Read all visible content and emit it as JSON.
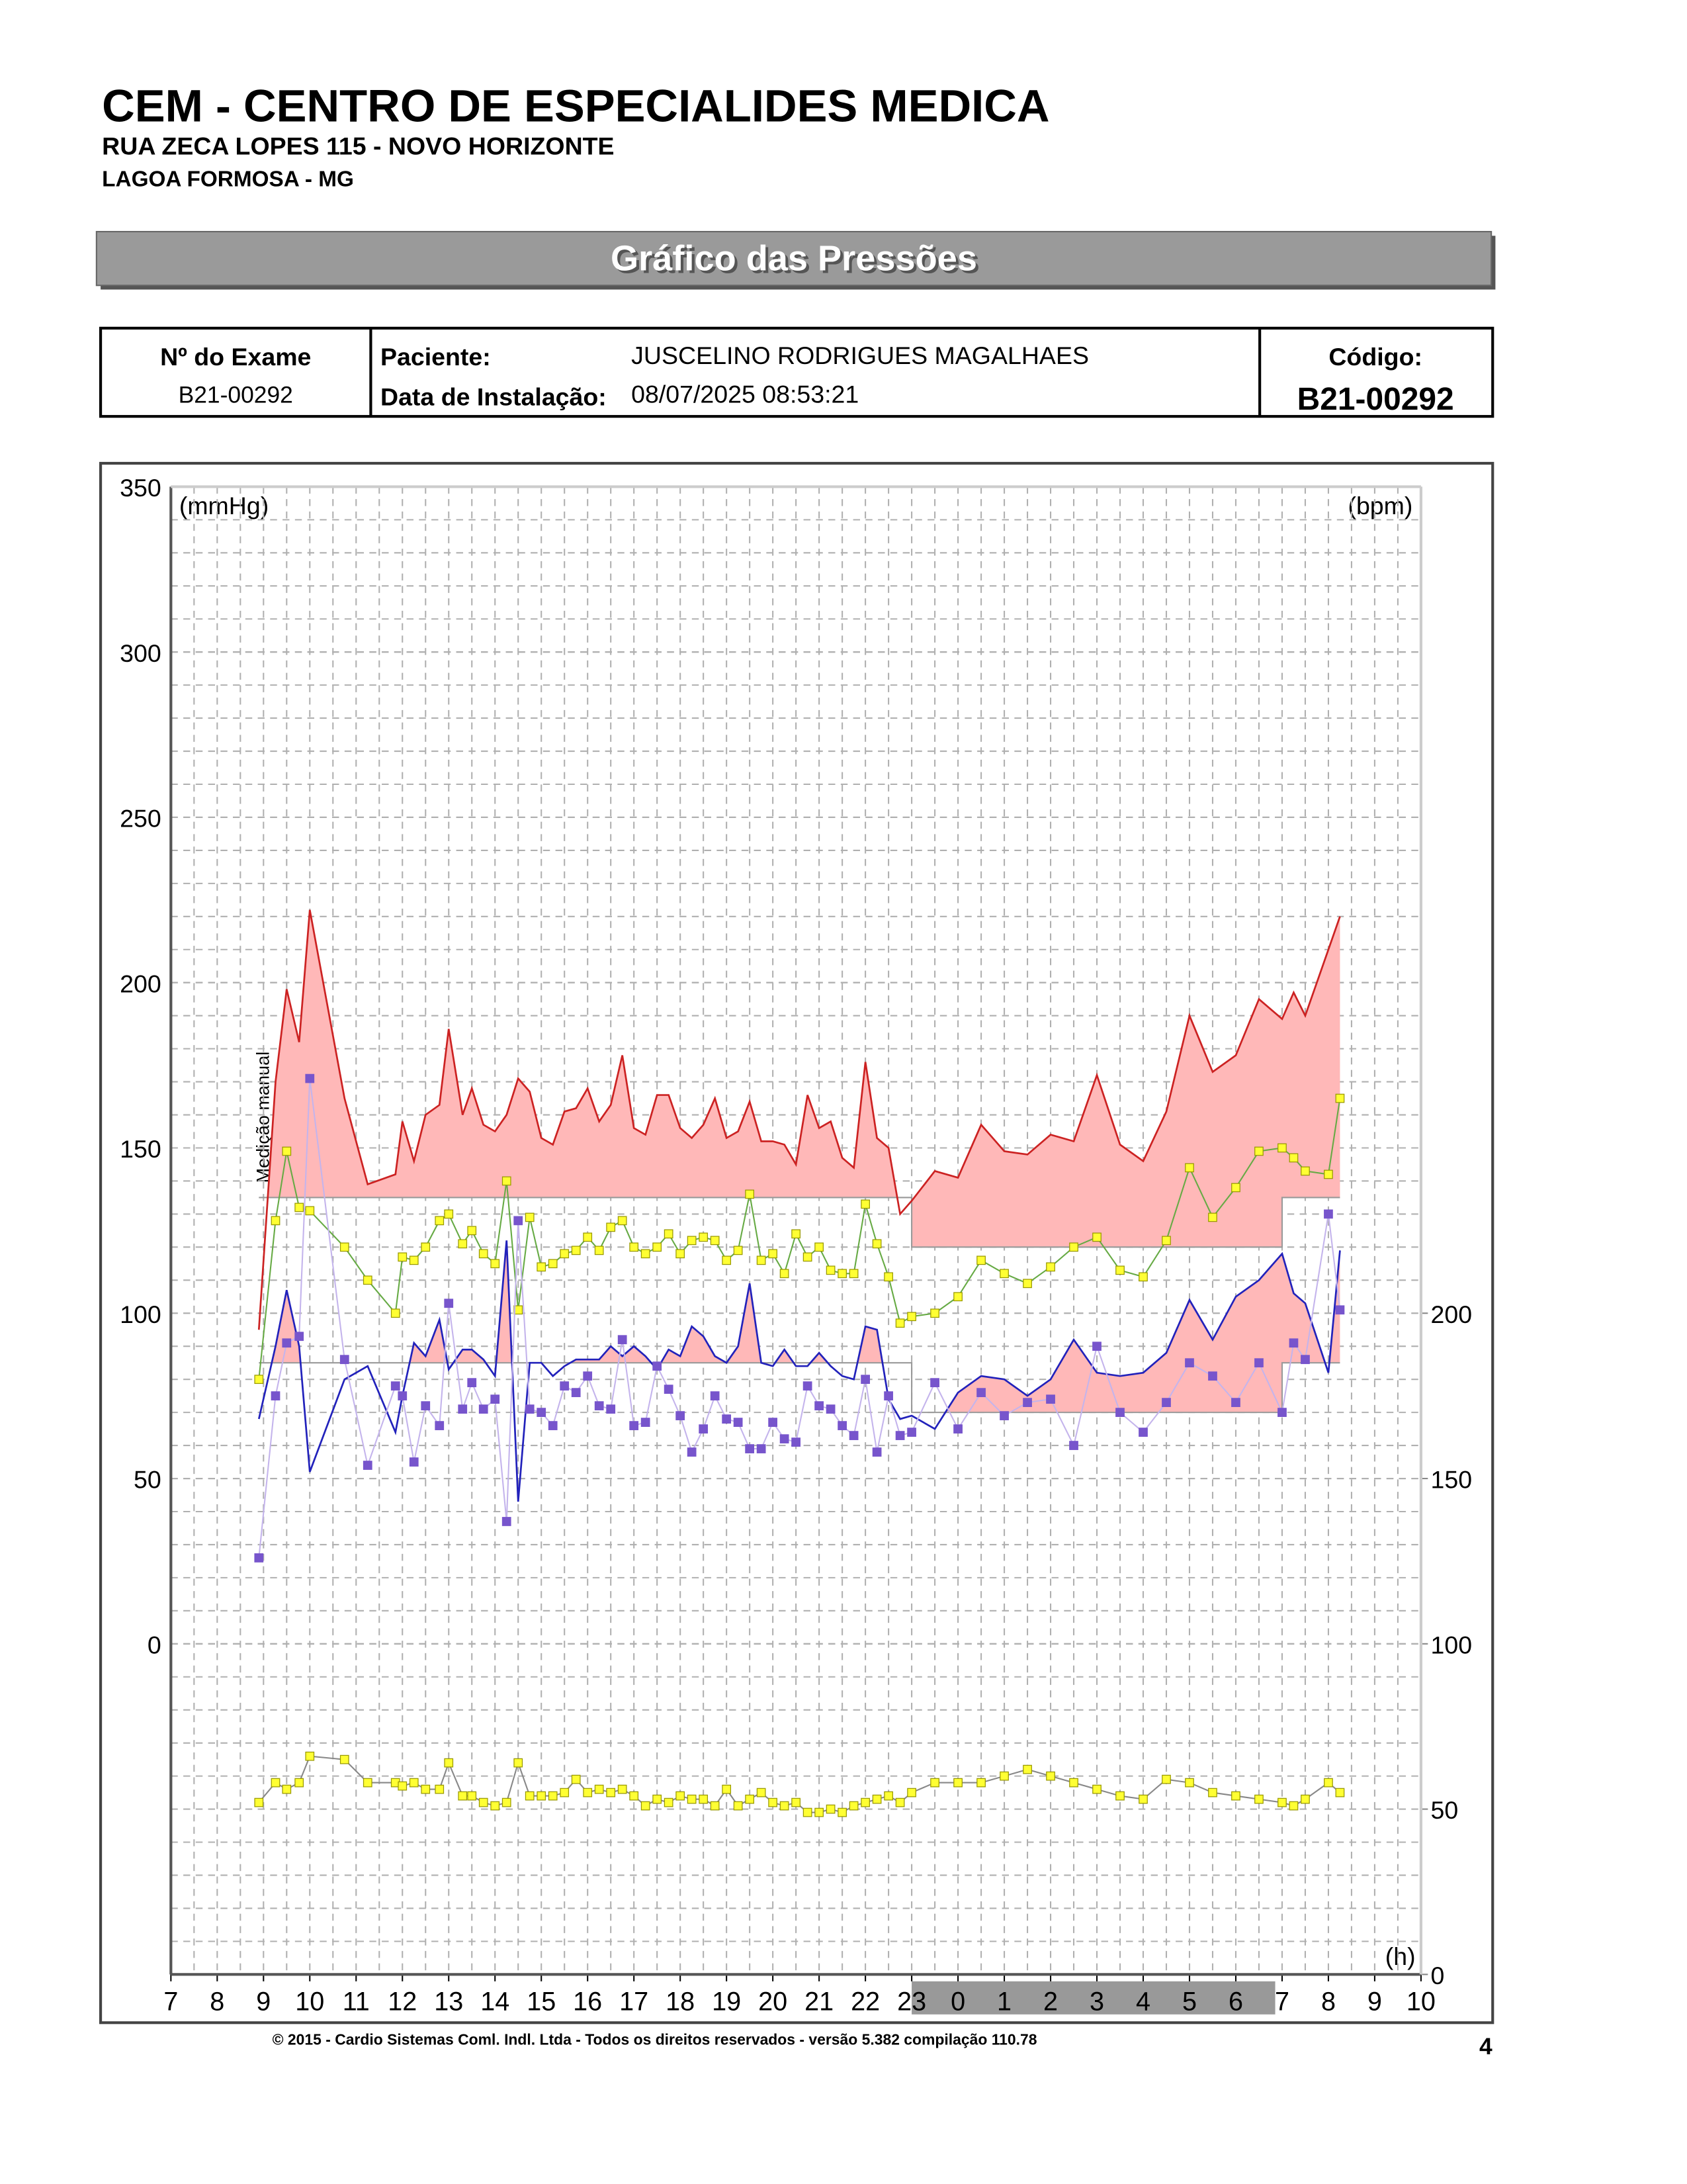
{
  "header": {
    "clinic": "CEM - CENTRO DE ESPECIALIDES MEDICA",
    "address": "RUA ZECA LOPES 115 - NOVO HORIZONTE",
    "city": "LAGOA FORMOSA - MG",
    "banner": "Gráfico das Pressões"
  },
  "exam": {
    "exam_label": "Nº do Exame",
    "exam_value": "B21-00292",
    "patient_label": "Paciente:",
    "patient_value": "JUSCELINO RODRIGUES  MAGALHAES",
    "install_label": "Data de Instalação:",
    "install_value": "08/07/2025 08:53:21",
    "code_label": "Código:",
    "code_value": "B21-00292"
  },
  "chart_data": {
    "type": "abpm",
    "y_label": "(mmHg)",
    "y2_label": "(bpm)",
    "x_label": "(h)",
    "annotation": "Medição manual",
    "grid": true,
    "xlim": [
      7,
      34
    ],
    "xticks": [
      7,
      8,
      9,
      10,
      11,
      12,
      13,
      14,
      15,
      16,
      17,
      18,
      19,
      20,
      21,
      22,
      23,
      {
        "value": 24,
        "label": "0"
      },
      {
        "value": 25,
        "label": "1"
      },
      {
        "value": 26,
        "label": "2"
      },
      {
        "value": 27,
        "label": "3"
      },
      {
        "value": 28,
        "label": "4"
      },
      {
        "value": 29,
        "label": "5"
      },
      {
        "value": 30,
        "label": "6"
      },
      {
        "value": 31,
        "label": "7"
      },
      {
        "value": 32,
        "label": "8"
      },
      {
        "value": 33,
        "label": "9"
      },
      {
        "value": 34,
        "label": "10"
      }
    ],
    "ylim": [
      -100,
      350
    ],
    "yticks": [
      0,
      50,
      100,
      150,
      200,
      250,
      300,
      350
    ],
    "y2lim": [
      0,
      450
    ],
    "y2ticks": [
      0,
      50,
      100,
      150,
      200
    ],
    "night": [
      23,
      31
    ],
    "night_color": "#999999",
    "x": [
      8.9,
      9.26,
      9.5,
      9.77,
      10.0,
      10.75,
      11.25,
      11.85,
      12.0,
      12.25,
      12.5,
      12.8,
      13.0,
      13.3,
      13.5,
      13.75,
      14.0,
      14.25,
      14.5,
      14.75,
      15.0,
      15.25,
      15.5,
      15.75,
      16.0,
      16.25,
      16.5,
      16.75,
      17.0,
      17.25,
      17.5,
      17.75,
      18.0,
      18.25,
      18.5,
      18.75,
      19.0,
      19.25,
      19.5,
      19.75,
      20.0,
      20.25,
      20.5,
      20.75,
      21.0,
      21.25,
      21.5,
      21.75,
      22.0,
      22.25,
      22.5,
      22.75,
      23.0,
      23.5,
      24.0,
      24.5,
      25.0,
      25.5,
      26.0,
      26.5,
      27.0,
      27.5,
      28.0,
      28.5,
      29.0,
      29.5,
      30.0,
      30.5,
      31.0,
      31.25,
      31.5,
      32.0,
      32.25
    ],
    "series": [
      {
        "color": "#cc2222",
        "fill": "#ffb8b8",
        "limits": [
          135,
          120
        ],
        "values": [
          95,
          170,
          198,
          182,
          222,
          165,
          139,
          142,
          158,
          146,
          160,
          163,
          186,
          160,
          168,
          157,
          155,
          160,
          171,
          167,
          153,
          151,
          161,
          162,
          168,
          158,
          163,
          178,
          156,
          154,
          166,
          166,
          156,
          153,
          157,
          165,
          153,
          155,
          164,
          152,
          152,
          151,
          145,
          166,
          156,
          158,
          147,
          144,
          176,
          153,
          150,
          130,
          134,
          143,
          141,
          157,
          149,
          148,
          154,
          152,
          172,
          151,
          146,
          161,
          190,
          173,
          178,
          195,
          189,
          197,
          190,
          210,
          220
        ]
      },
      {
        "color": "#2222bb",
        "fill": "#ffb8b8",
        "limits": [
          85,
          70
        ],
        "values": [
          68,
          90,
          107,
          90,
          52,
          80,
          84,
          64,
          75,
          91,
          87,
          98,
          83,
          89,
          89,
          86,
          81,
          122,
          43,
          85,
          85,
          81,
          84,
          86,
          86,
          86,
          90,
          87,
          90,
          87,
          83,
          89,
          87,
          96,
          93,
          87,
          85,
          90,
          109,
          85,
          84,
          89,
          84,
          84,
          88,
          84,
          81,
          80,
          96,
          95,
          74,
          68,
          69,
          65,
          76,
          81,
          80,
          75,
          80,
          92,
          82,
          81,
          82,
          88,
          104,
          92,
          105,
          110,
          118,
          106,
          103,
          82,
          119
        ]
      },
      {
        "color": "#66aa44",
        "marker": "#ffff33",
        "values": [
          80,
          128,
          149,
          132,
          131,
          120,
          110,
          100,
          117,
          116,
          120,
          128,
          130,
          121,
          125,
          118,
          115,
          140,
          101,
          129,
          114,
          115,
          118,
          119,
          123,
          119,
          126,
          128,
          120,
          118,
          120,
          124,
          118,
          122,
          123,
          122,
          116,
          119,
          136,
          116,
          118,
          112,
          124,
          117,
          120,
          113,
          112,
          112,
          133,
          121,
          111,
          97,
          99,
          100,
          105,
          116,
          112,
          109,
          114,
          120,
          123,
          113,
          111,
          122,
          144,
          129,
          138,
          149,
          150,
          147,
          143,
          142,
          165
        ]
      },
      {
        "color": "#c4b4ec",
        "marker": "#7755cc",
        "values": [
          26,
          75,
          91,
          93,
          171,
          86,
          54,
          78,
          75,
          55,
          72,
          66,
          103,
          71,
          79,
          71,
          74,
          37,
          128,
          71,
          70,
          66,
          78,
          76,
          81,
          72,
          71,
          92,
          66,
          67,
          84,
          77,
          69,
          58,
          65,
          75,
          68,
          67,
          59,
          59,
          67,
          62,
          61,
          78,
          72,
          71,
          66,
          63,
          80,
          58,
          75,
          63,
          64,
          79,
          65,
          76,
          69,
          73,
          74,
          60,
          90,
          70,
          64,
          73,
          85,
          81,
          73,
          85,
          70,
          91,
          86,
          130,
          101
        ]
      },
      {
        "color": "#888888",
        "marker": "#ffff33",
        "axis": "y2",
        "values": [
          52,
          58,
          56,
          58,
          66,
          65,
          58,
          58,
          57,
          58,
          56,
          56,
          64,
          54,
          54,
          52,
          51,
          52,
          64,
          54,
          54,
          54,
          55,
          59,
          55,
          56,
          55,
          56,
          54,
          51,
          53,
          52,
          54,
          53,
          53,
          51,
          56,
          51,
          53,
          55,
          52,
          51,
          52,
          49,
          49,
          50,
          49,
          51,
          52,
          53,
          54,
          52,
          55,
          58,
          58,
          58,
          60,
          62,
          60,
          58,
          56,
          54,
          53,
          59,
          58,
          55,
          54,
          53,
          52,
          51,
          53,
          58,
          55
        ]
      }
    ]
  },
  "footer": {
    "copyright": "© 2015 - Cardio Sistemas Coml. Indl. Ltda - Todos os direitos reservados - versão 5.382 compilação 110.78",
    "page": "4"
  }
}
